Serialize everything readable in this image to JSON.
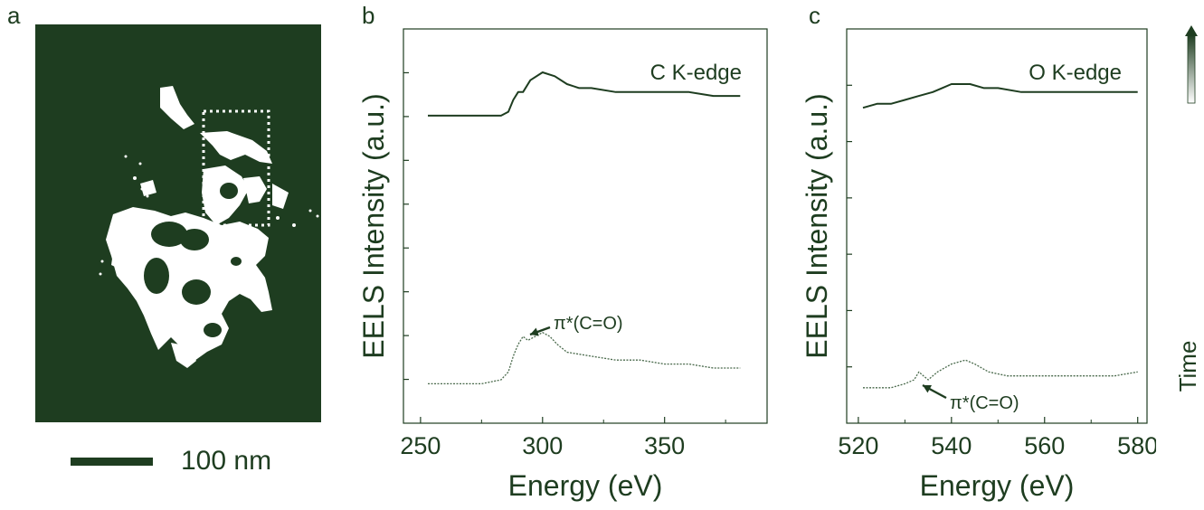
{
  "panels": {
    "a": {
      "letter": "a",
      "scale_bar_label": "100 nm"
    },
    "b": {
      "letter": "b"
    },
    "c": {
      "letter": "c"
    },
    "time_label": "Time"
  },
  "colors": {
    "ink": "#1e3d20",
    "image_background": "#1e3d20",
    "particle": "#ffffff"
  },
  "chart_data": [
    {
      "type": "line",
      "annotation_title": "C K-edge",
      "xlabel": "Energy (eV)",
      "ylabel": "EELS Intensity (a.u.)",
      "xlim": [
        243,
        392
      ],
      "x_ticks": [
        250,
        300,
        350
      ],
      "y_tick_labels": "none",
      "pointer_label": "π*(C=O)",
      "series": [
        {
          "style": "solid-dark",
          "points": [
            [
              253,
              0.78
            ],
            [
              265,
              0.78
            ],
            [
              275,
              0.78
            ],
            [
              283,
              0.78
            ],
            [
              286,
              0.79
            ],
            [
              288,
              0.82
            ],
            [
              290,
              0.84
            ],
            [
              292,
              0.84
            ],
            [
              295,
              0.87
            ],
            [
              300,
              0.89
            ],
            [
              305,
              0.88
            ],
            [
              310,
              0.86
            ],
            [
              315,
              0.85
            ],
            [
              320,
              0.85
            ],
            [
              330,
              0.84
            ],
            [
              340,
              0.84
            ],
            [
              350,
              0.84
            ],
            [
              360,
              0.84
            ],
            [
              370,
              0.83
            ],
            [
              381,
              0.83
            ]
          ]
        },
        {
          "style": "dotted-light",
          "points": [
            [
              253,
              0.1
            ],
            [
              265,
              0.1
            ],
            [
              275,
              0.1
            ],
            [
              283,
              0.11
            ],
            [
              286,
              0.13
            ],
            [
              288,
              0.17
            ],
            [
              290,
              0.2
            ],
            [
              292,
              0.22
            ],
            [
              294,
              0.21
            ],
            [
              297,
              0.22
            ],
            [
              300,
              0.23
            ],
            [
              303,
              0.22
            ],
            [
              306,
              0.2
            ],
            [
              310,
              0.18
            ],
            [
              320,
              0.17
            ],
            [
              330,
              0.16
            ],
            [
              340,
              0.16
            ],
            [
              350,
              0.15
            ],
            [
              360,
              0.15
            ],
            [
              370,
              0.14
            ],
            [
              381,
              0.14
            ]
          ]
        }
      ]
    },
    {
      "type": "line",
      "annotation_title": "O K-edge",
      "xlabel": "Energy (eV)",
      "ylabel": "EELS Intensity (a.u.)",
      "xlim": [
        517.5,
        582
      ],
      "x_ticks": [
        520,
        540,
        560,
        580
      ],
      "y_tick_labels": "none",
      "pointer_label": "π*(C=O)",
      "series": [
        {
          "style": "solid-dark",
          "points": [
            [
              521,
              0.8
            ],
            [
              524,
              0.81
            ],
            [
              527,
              0.81
            ],
            [
              530,
              0.82
            ],
            [
              533,
              0.83
            ],
            [
              536,
              0.84
            ],
            [
              538,
              0.85
            ],
            [
              540,
              0.86
            ],
            [
              542,
              0.86
            ],
            [
              544,
              0.86
            ],
            [
              547,
              0.85
            ],
            [
              550,
              0.85
            ],
            [
              555,
              0.84
            ],
            [
              560,
              0.84
            ],
            [
              565,
              0.84
            ],
            [
              570,
              0.84
            ],
            [
              575,
              0.84
            ],
            [
              580,
              0.84
            ]
          ]
        },
        {
          "style": "dotted-light",
          "points": [
            [
              521,
              0.09
            ],
            [
              524,
              0.09
            ],
            [
              527,
              0.09
            ],
            [
              530,
              0.1
            ],
            [
              532,
              0.11
            ],
            [
              533,
              0.13
            ],
            [
              534,
              0.12
            ],
            [
              535,
              0.11
            ],
            [
              537,
              0.13
            ],
            [
              540,
              0.15
            ],
            [
              543,
              0.16
            ],
            [
              545,
              0.15
            ],
            [
              548,
              0.13
            ],
            [
              552,
              0.12
            ],
            [
              560,
              0.12
            ],
            [
              565,
              0.12
            ],
            [
              570,
              0.12
            ],
            [
              575,
              0.12
            ],
            [
              580,
              0.13
            ]
          ]
        }
      ]
    }
  ]
}
